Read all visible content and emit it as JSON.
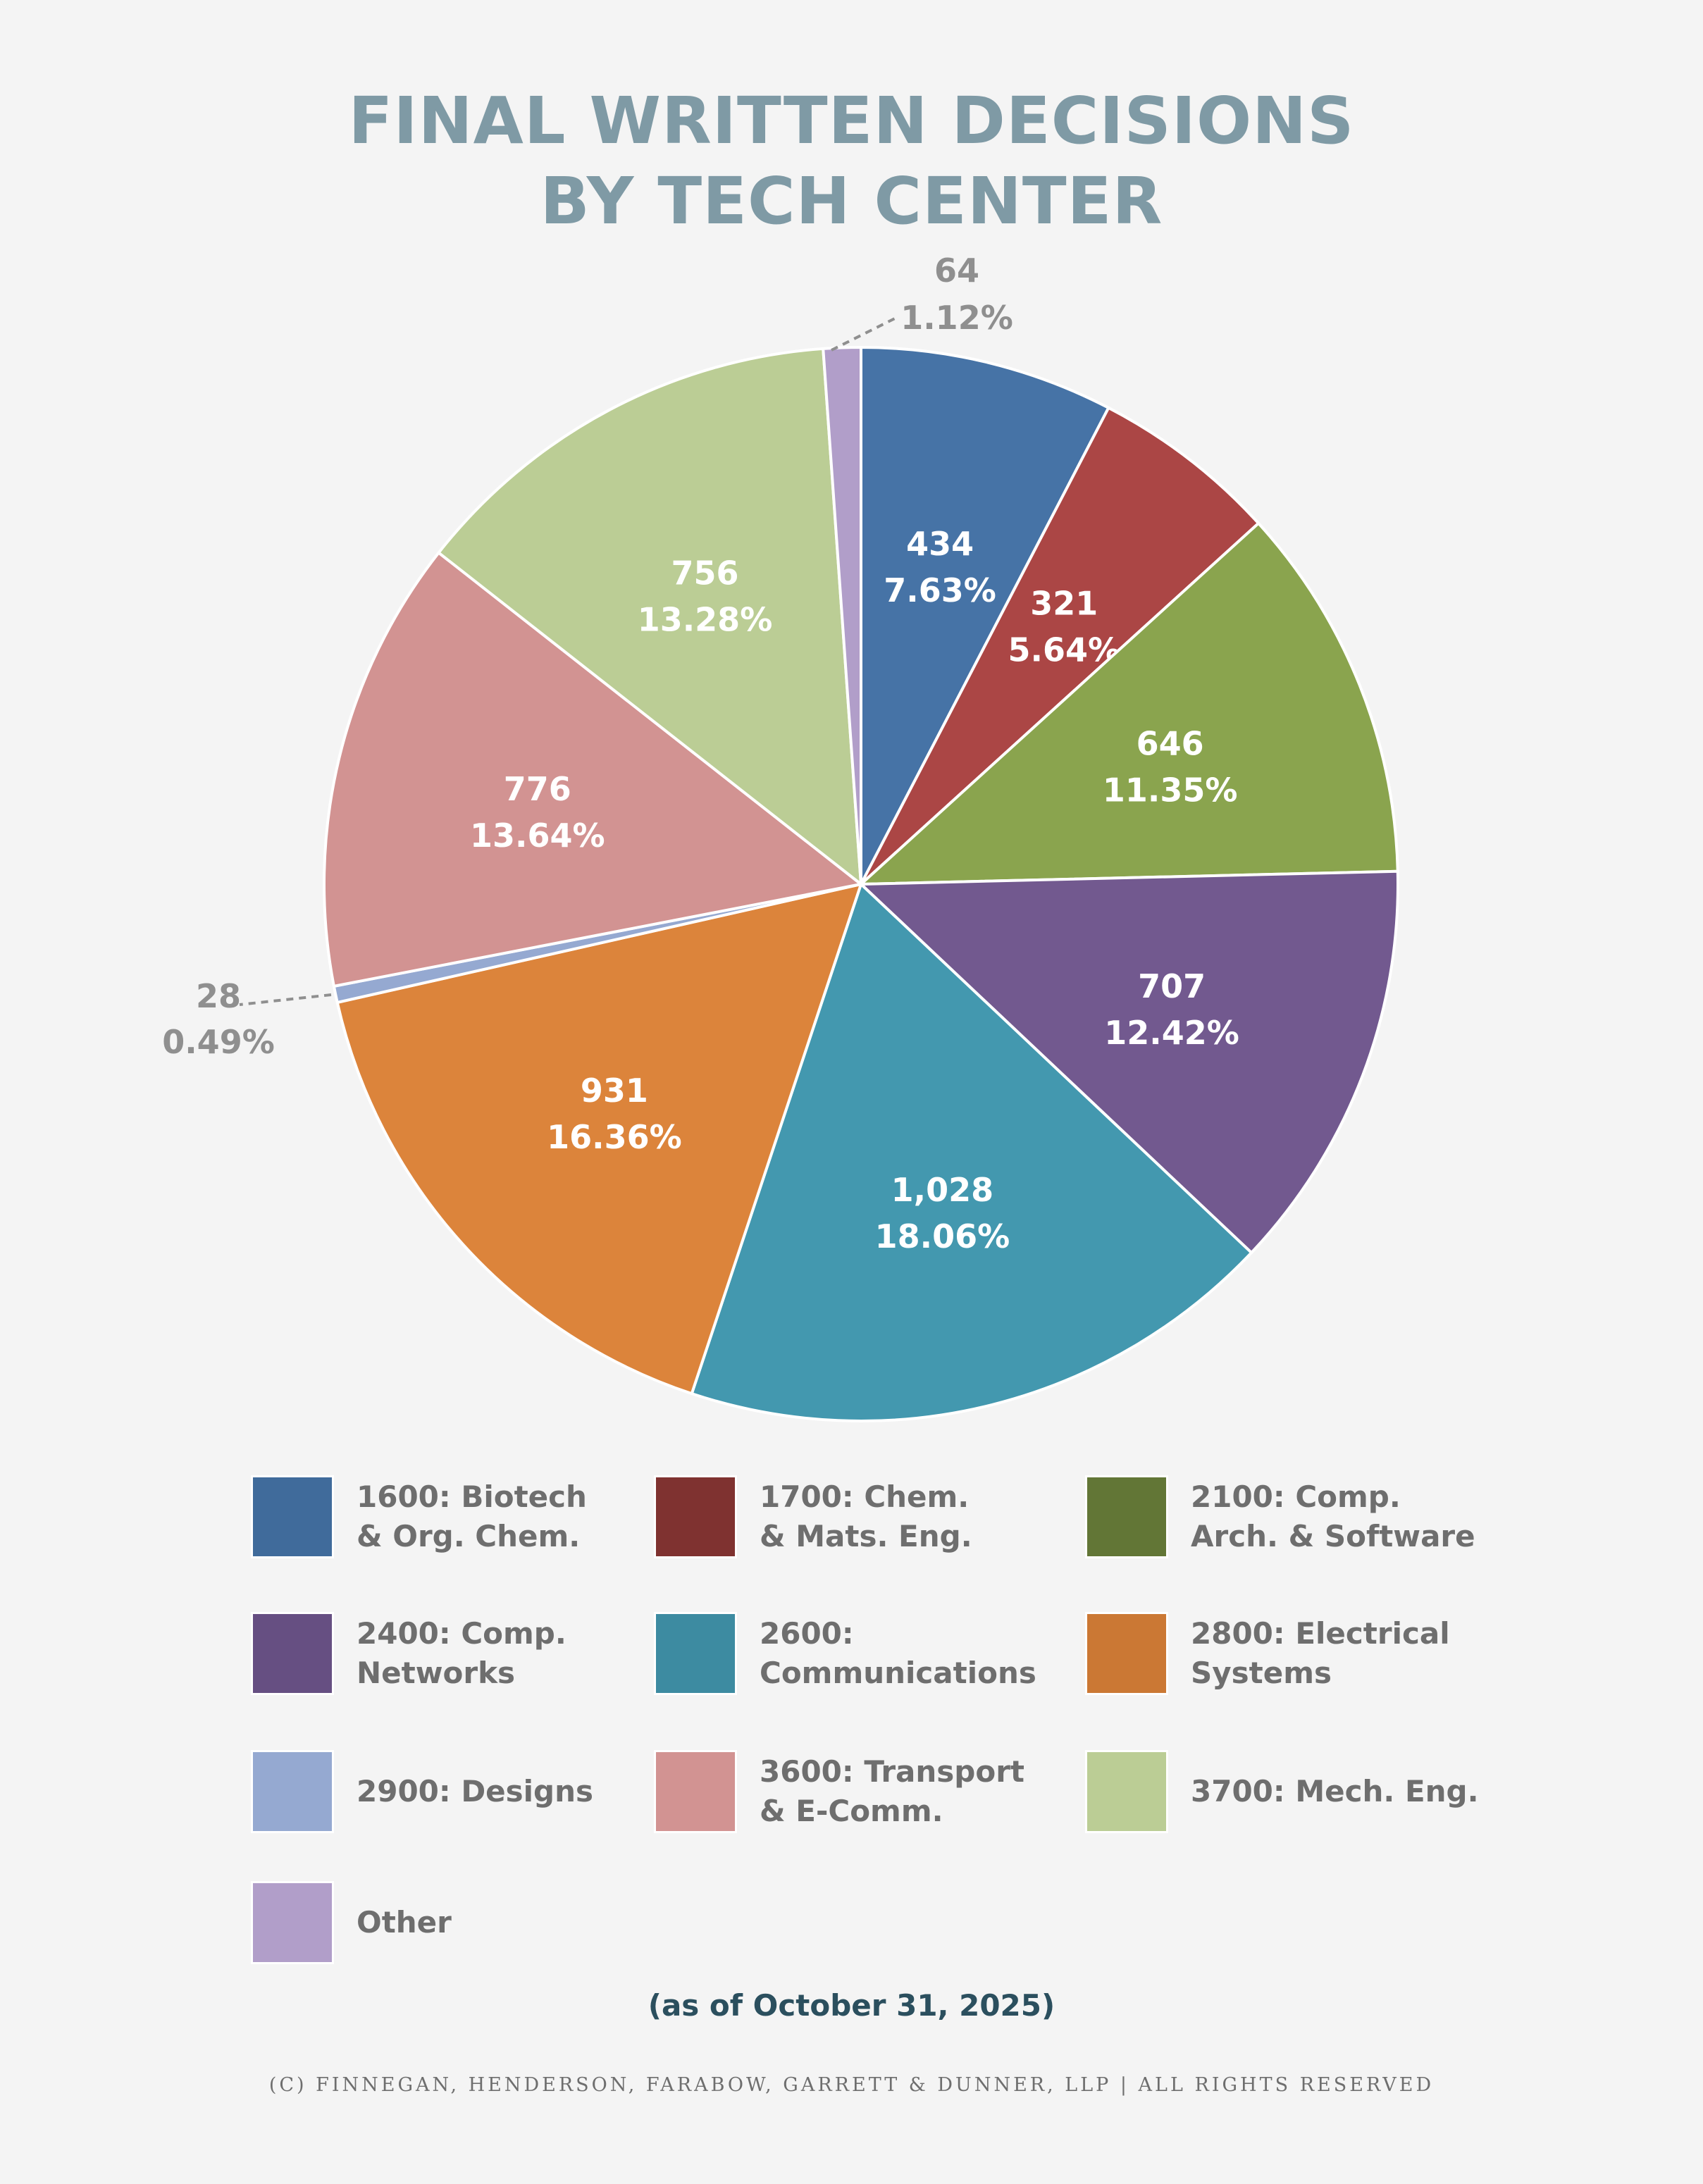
{
  "title_line1": "FINAL WRITTEN DECISIONS",
  "title_line2": "BY TECH CENTER",
  "as_of": "(as of October 31, 2025)",
  "copyright": "(C) FINNEGAN, HENDERSON, FARABOW, GARRETT & DUNNER, LLP | ALL RIGHTS RESERVED",
  "chart_data": {
    "type": "pie",
    "start_angle_deg": 0,
    "direction": "clockwise",
    "slices": [
      {
        "label": "1600: Biotech & Org. Chem.",
        "value": 434,
        "value_text": "434",
        "percent": "7.63%",
        "color": "#4673a6",
        "legend_color": "#406b9b",
        "outside": false
      },
      {
        "label": "1700: Chem. & Mats. Eng.",
        "value": 321,
        "value_text": "321",
        "percent": "5.64%",
        "color": "#ab4645",
        "legend_color": "#7f3230",
        "outside": false
      },
      {
        "label": "2100: Comp. Arch. & Software",
        "value": 646,
        "value_text": "646",
        "percent": "11.35%",
        "color": "#8aa44e",
        "legend_color": "#627636",
        "outside": false
      },
      {
        "label": "2400: Comp. Networks",
        "value": 707,
        "value_text": "707",
        "percent": "12.42%",
        "color": "#72598f",
        "legend_color": "#664f82",
        "outside": false
      },
      {
        "label": "2600: Communications",
        "value": 1028,
        "value_text": "1,028",
        "percent": "18.06%",
        "color": "#4398af",
        "legend_color": "#3d8ba1",
        "outside": false
      },
      {
        "label": "2800: Electrical Systems",
        "value": 931,
        "value_text": "931",
        "percent": "16.36%",
        "color": "#dc843b",
        "legend_color": "#cb7834",
        "outside": false
      },
      {
        "label": "2900: Designs",
        "value": 28,
        "value_text": "28",
        "percent": "0.49%",
        "color": "#95a9d1",
        "legend_color": "#95a9d1",
        "outside": true
      },
      {
        "label": "3600: Transport & E-Comm.",
        "value": 776,
        "value_text": "776",
        "percent": "13.64%",
        "color": "#d29392",
        "legend_color": "#d29392",
        "outside": false
      },
      {
        "label": "3700: Mech. Eng.",
        "value": 756,
        "value_text": "756",
        "percent": "13.28%",
        "color": "#bbcd95",
        "legend_color": "#bbcd95",
        "outside": false
      },
      {
        "label": "Other",
        "value": 64,
        "value_text": "64",
        "percent": "1.12%",
        "color": "#b19ec9",
        "legend_color": "#b19ec9",
        "outside": true
      }
    ]
  },
  "legend": [
    {
      "line1": "1600: Biotech",
      "line2": "& Org. Chem."
    },
    {
      "line1": "1700: Chem.",
      "line2": "& Mats. Eng."
    },
    {
      "line1": "2100: Comp.",
      "line2": "Arch. & Software"
    },
    {
      "line1": "2400: Comp.",
      "line2": "Networks"
    },
    {
      "line1": "2600:",
      "line2": "Communications"
    },
    {
      "line1": "2800: Electrical",
      "line2": "Systems"
    },
    {
      "line1": "2900: Designs",
      "line2": ""
    },
    {
      "line1": "3600: Transport",
      "line2": "& E-Comm."
    },
    {
      "line1": "3700: Mech. Eng.",
      "line2": ""
    },
    {
      "line1": "Other",
      "line2": ""
    }
  ]
}
